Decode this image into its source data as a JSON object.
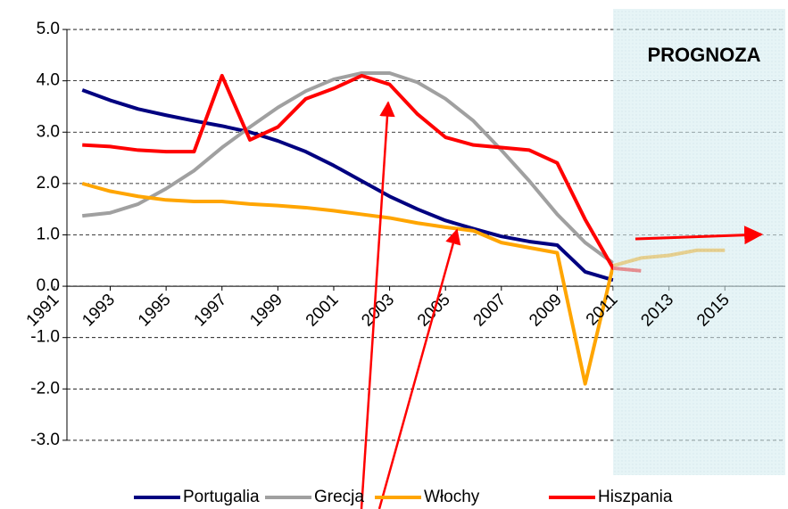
{
  "chart_data": {
    "type": "line",
    "annotation": "PROGNOZA",
    "x": [
      1992,
      1993,
      1994,
      1995,
      1996,
      1997,
      1998,
      1999,
      2000,
      2001,
      2002,
      2003,
      2004,
      2005,
      2006,
      2007,
      2008,
      2009,
      2010,
      2011,
      2012,
      2013,
      2014,
      2015
    ],
    "series": [
      {
        "name": "Portugalia",
        "color": "#000080",
        "values": [
          3.82,
          3.62,
          3.45,
          3.33,
          3.22,
          3.12,
          3.0,
          2.83,
          2.62,
          2.35,
          2.05,
          1.75,
          1.5,
          1.28,
          1.12,
          0.97,
          0.87,
          0.8,
          0.28,
          0.12,
          null,
          null,
          null,
          null
        ]
      },
      {
        "name": "Grecja",
        "color": "#a0a0a0",
        "values": [
          1.37,
          1.43,
          1.6,
          1.9,
          2.25,
          2.7,
          3.1,
          3.48,
          3.8,
          4.03,
          4.15,
          4.15,
          3.97,
          3.65,
          3.22,
          2.65,
          2.05,
          1.4,
          0.85,
          0.45,
          null,
          null,
          null,
          null
        ]
      },
      {
        "name": "Włochy",
        "color": "#ffa500",
        "values": [
          2.0,
          1.85,
          1.75,
          1.68,
          1.65,
          1.65,
          1.6,
          1.57,
          1.53,
          1.47,
          1.4,
          1.33,
          1.23,
          1.15,
          1.08,
          0.85,
          0.75,
          0.65,
          -1.9,
          0.4,
          0.55,
          0.6,
          0.7,
          0.7
        ]
      },
      {
        "name": "Hiszpania",
        "color": "#ff0000",
        "values": [
          2.75,
          2.72,
          2.65,
          2.62,
          2.62,
          4.1,
          2.85,
          3.1,
          3.65,
          3.85,
          4.1,
          3.93,
          3.35,
          2.9,
          2.75,
          2.7,
          2.65,
          2.4,
          1.3,
          0.35,
          0.3,
          null,
          null,
          null
        ]
      }
    ],
    "xlim": [
      1991.45,
      2017.26
    ],
    "xticks": [
      1991,
      1993,
      1995,
      1997,
      1999,
      2001,
      2003,
      2005,
      2007,
      2009,
      2011,
      2013,
      2015
    ],
    "forecast_start": 2011,
    "ylim": [
      -3.8,
      5.4
    ],
    "yticks": [
      {
        "value": 5,
        "label": "5.0"
      },
      {
        "value": 4,
        "label": "4.0"
      },
      {
        "value": 3,
        "label": "3.0"
      },
      {
        "value": 2,
        "label": "2.0"
      },
      {
        "value": 1,
        "label": "1.0"
      },
      {
        "value": 0,
        "label": "0.0"
      },
      {
        "value": -1,
        "label": "-1.0"
      },
      {
        "value": -2,
        "label": "-2.0"
      },
      {
        "value": -3,
        "label": "-3.0"
      }
    ],
    "grid": true,
    "legend": "bottom"
  }
}
